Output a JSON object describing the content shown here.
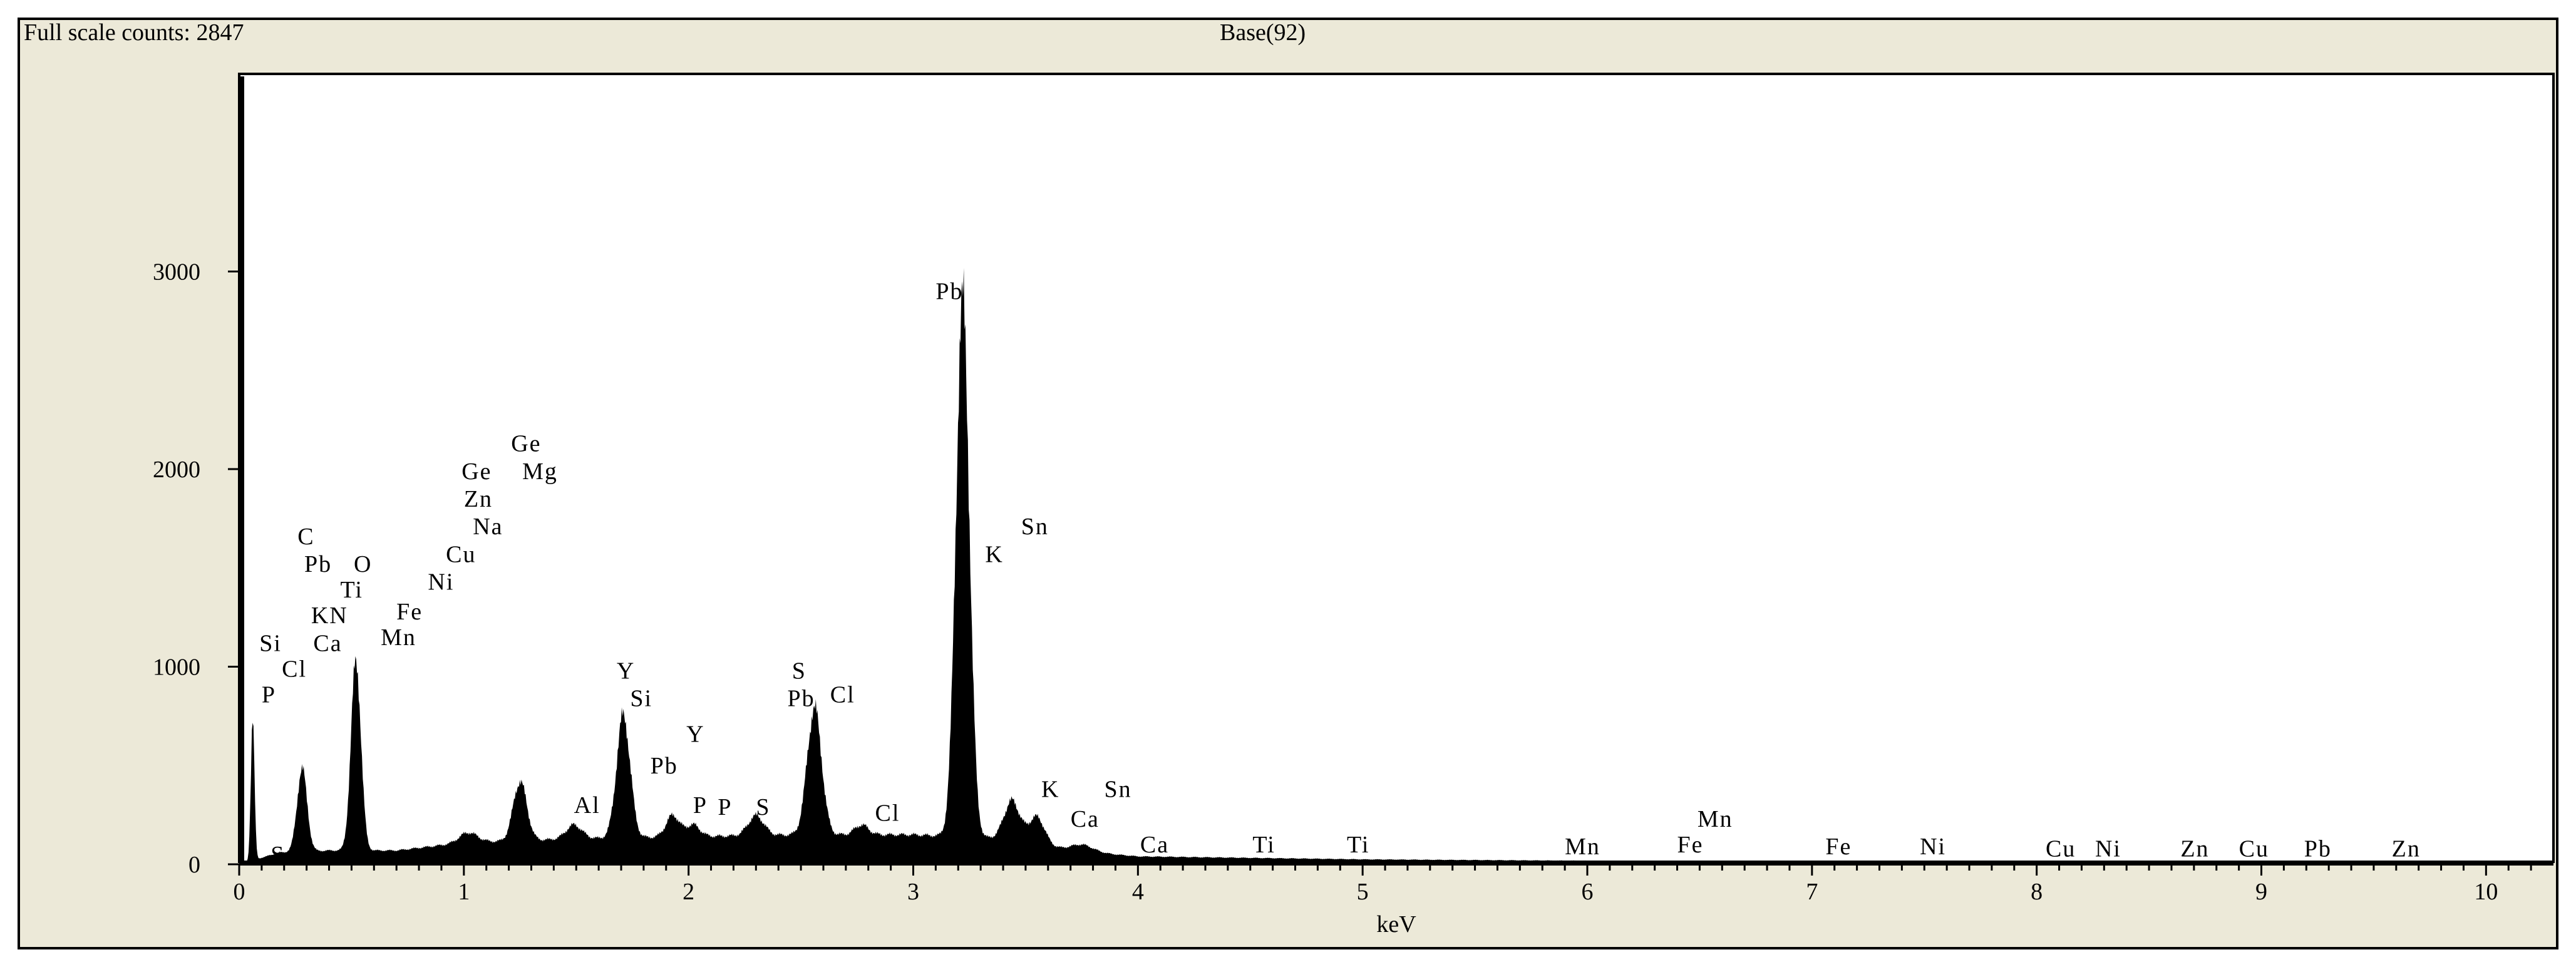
{
  "header": {
    "full_scale": "Full scale counts: 2847",
    "spectrum_name": "Base(92)"
  },
  "chart_data": {
    "type": "area",
    "title": "Base(92)",
    "xlabel": "keV",
    "ylabel": "",
    "xlim": [
      0,
      10.3
    ],
    "ylim": [
      0,
      4000
    ],
    "x_ticks": [
      "0",
      "1",
      "2",
      "3",
      "4",
      "5",
      "6",
      "7",
      "8",
      "9",
      "10"
    ],
    "y_ticks": [
      {
        "label": "0",
        "value": 0
      },
      {
        "label": "1000",
        "value": 1000
      },
      {
        "label": "2000",
        "value": 2000
      },
      {
        "label": "3000",
        "value": 3000
      }
    ],
    "full_scale_counts": 2847,
    "background": [
      [
        0,
        0
      ],
      [
        0.18,
        60
      ],
      [
        0.4,
        70
      ],
      [
        0.7,
        70
      ],
      [
        1.0,
        110
      ],
      [
        1.5,
        130
      ],
      [
        2.0,
        140
      ],
      [
        2.5,
        150
      ],
      [
        3.0,
        150
      ],
      [
        3.4,
        130
      ],
      [
        3.7,
        70
      ],
      [
        4.0,
        40
      ],
      [
        5.0,
        25
      ],
      [
        6.0,
        18
      ],
      [
        7.0,
        12
      ],
      [
        8.0,
        8
      ],
      [
        9.0,
        6
      ],
      [
        10.3,
        5
      ]
    ],
    "peaks": [
      {
        "label": "P",
        "kev": 0.06,
        "counts": 720,
        "width": 0.008
      },
      {
        "label": "C",
        "kev": 0.28,
        "counts": 420,
        "width": 0.022
      },
      {
        "label": "O",
        "kev": 0.52,
        "counts": 960,
        "width": 0.022
      },
      {
        "label": "Fe",
        "kev": 1.02,
        "counts": 50,
        "width": 0.04
      },
      {
        "label": "Mg",
        "kev": 1.25,
        "counts": 300,
        "width": 0.03
      },
      {
        "label": "Al",
        "kev": 1.49,
        "counts": 70,
        "width": 0.035
      },
      {
        "label": "Si",
        "kev": 1.71,
        "counts": 620,
        "width": 0.03
      },
      {
        "label": "Y",
        "kev": 1.93,
        "counts": 110,
        "width": 0.03
      },
      {
        "label": "P",
        "kev": 2.02,
        "counts": 60,
        "width": 0.03
      },
      {
        "label": "S",
        "kev": 2.3,
        "counts": 100,
        "width": 0.035
      },
      {
        "label": "Pb",
        "kev": 2.56,
        "counts": 640,
        "width": 0.032
      },
      {
        "label": "Cl",
        "kev": 2.77,
        "counts": 50,
        "width": 0.03
      },
      {
        "label": "Pb",
        "kev": 3.22,
        "counts": 2700,
        "width": 0.03
      },
      {
        "label": "Sn",
        "kev": 3.44,
        "counts": 200,
        "width": 0.035
      },
      {
        "label": "K",
        "kev": 3.55,
        "counts": 140,
        "width": 0.035
      },
      {
        "label": "Ca",
        "kev": 3.75,
        "counts": 35,
        "width": 0.05
      }
    ],
    "annotations": [
      {
        "text": "S",
        "kev": 0.14,
        "counts": 10
      },
      {
        "text": "P",
        "kev": 0.1,
        "counts": 820
      },
      {
        "text": "Cl",
        "kev": 0.19,
        "counts": 950
      },
      {
        "text": "Si",
        "kev": 0.09,
        "counts": 1080
      },
      {
        "text": "Ca",
        "kev": 0.33,
        "counts": 1080
      },
      {
        "text": "KN",
        "kev": 0.32,
        "counts": 1220
      },
      {
        "text": "Mn",
        "kev": 0.63,
        "counts": 1110
      },
      {
        "text": "Ti",
        "kev": 0.45,
        "counts": 1350
      },
      {
        "text": "Fe",
        "kev": 0.7,
        "counts": 1240
      },
      {
        "text": "Pb",
        "kev": 0.29,
        "counts": 1480
      },
      {
        "text": "O",
        "kev": 0.51,
        "counts": 1480
      },
      {
        "text": "C",
        "kev": 0.26,
        "counts": 1620
      },
      {
        "text": "Ni",
        "kev": 0.84,
        "counts": 1390
      },
      {
        "text": "Cu",
        "kev": 0.92,
        "counts": 1530
      },
      {
        "text": "Na",
        "kev": 1.04,
        "counts": 1670
      },
      {
        "text": "Zn",
        "kev": 1.0,
        "counts": 1810
      },
      {
        "text": "Ge",
        "kev": 0.99,
        "counts": 1950
      },
      {
        "text": "Mg",
        "kev": 1.26,
        "counts": 1950
      },
      {
        "text": "Ge",
        "kev": 1.21,
        "counts": 2090
      },
      {
        "text": "Al",
        "kev": 1.49,
        "counts": 260
      },
      {
        "text": "Y",
        "kev": 1.68,
        "counts": 940
      },
      {
        "text": "Si",
        "kev": 1.74,
        "counts": 800
      },
      {
        "text": "Pb",
        "kev": 1.83,
        "counts": 460
      },
      {
        "text": "Y",
        "kev": 1.99,
        "counts": 620
      },
      {
        "text": "P",
        "kev": 2.02,
        "counts": 260
      },
      {
        "text": "P",
        "kev": 2.13,
        "counts": 250
      },
      {
        "text": "S",
        "kev": 2.3,
        "counts": 250
      },
      {
        "text": "S",
        "kev": 2.46,
        "counts": 940
      },
      {
        "text": "Pb",
        "kev": 2.44,
        "counts": 800
      },
      {
        "text": "Cl",
        "kev": 2.63,
        "counts": 820
      },
      {
        "text": "Cl",
        "kev": 2.83,
        "counts": 220
      },
      {
        "text": "Pb",
        "kev": 3.1,
        "counts": 2860
      },
      {
        "text": "Sn",
        "kev": 3.48,
        "counts": 1670
      },
      {
        "text": "K",
        "kev": 3.32,
        "counts": 1530
      },
      {
        "text": "K",
        "kev": 3.57,
        "counts": 340
      },
      {
        "text": "Sn",
        "kev": 3.85,
        "counts": 340
      },
      {
        "text": "Ca",
        "kev": 3.7,
        "counts": 190
      },
      {
        "text": "Ca",
        "kev": 4.01,
        "counts": 60
      },
      {
        "text": "Ti",
        "kev": 4.51,
        "counts": 60
      },
      {
        "text": "Ti",
        "kev": 4.93,
        "counts": 60
      },
      {
        "text": "Mn",
        "kev": 5.9,
        "counts": 50
      },
      {
        "text": "Mn",
        "kev": 6.49,
        "counts": 190
      },
      {
        "text": "Fe",
        "kev": 6.4,
        "counts": 60
      },
      {
        "text": "Fe",
        "kev": 7.06,
        "counts": 50
      },
      {
        "text": "Ni",
        "kev": 7.48,
        "counts": 50
      },
      {
        "text": "Cu",
        "kev": 8.04,
        "counts": 40
      },
      {
        "text": "Ni",
        "kev": 8.26,
        "counts": 40
      },
      {
        "text": "Zn",
        "kev": 8.64,
        "counts": 40
      },
      {
        "text": "Cu",
        "kev": 8.9,
        "counts": 40
      },
      {
        "text": "Pb",
        "kev": 9.19,
        "counts": 40
      },
      {
        "text": "Zn",
        "kev": 9.58,
        "counts": 40
      }
    ]
  }
}
